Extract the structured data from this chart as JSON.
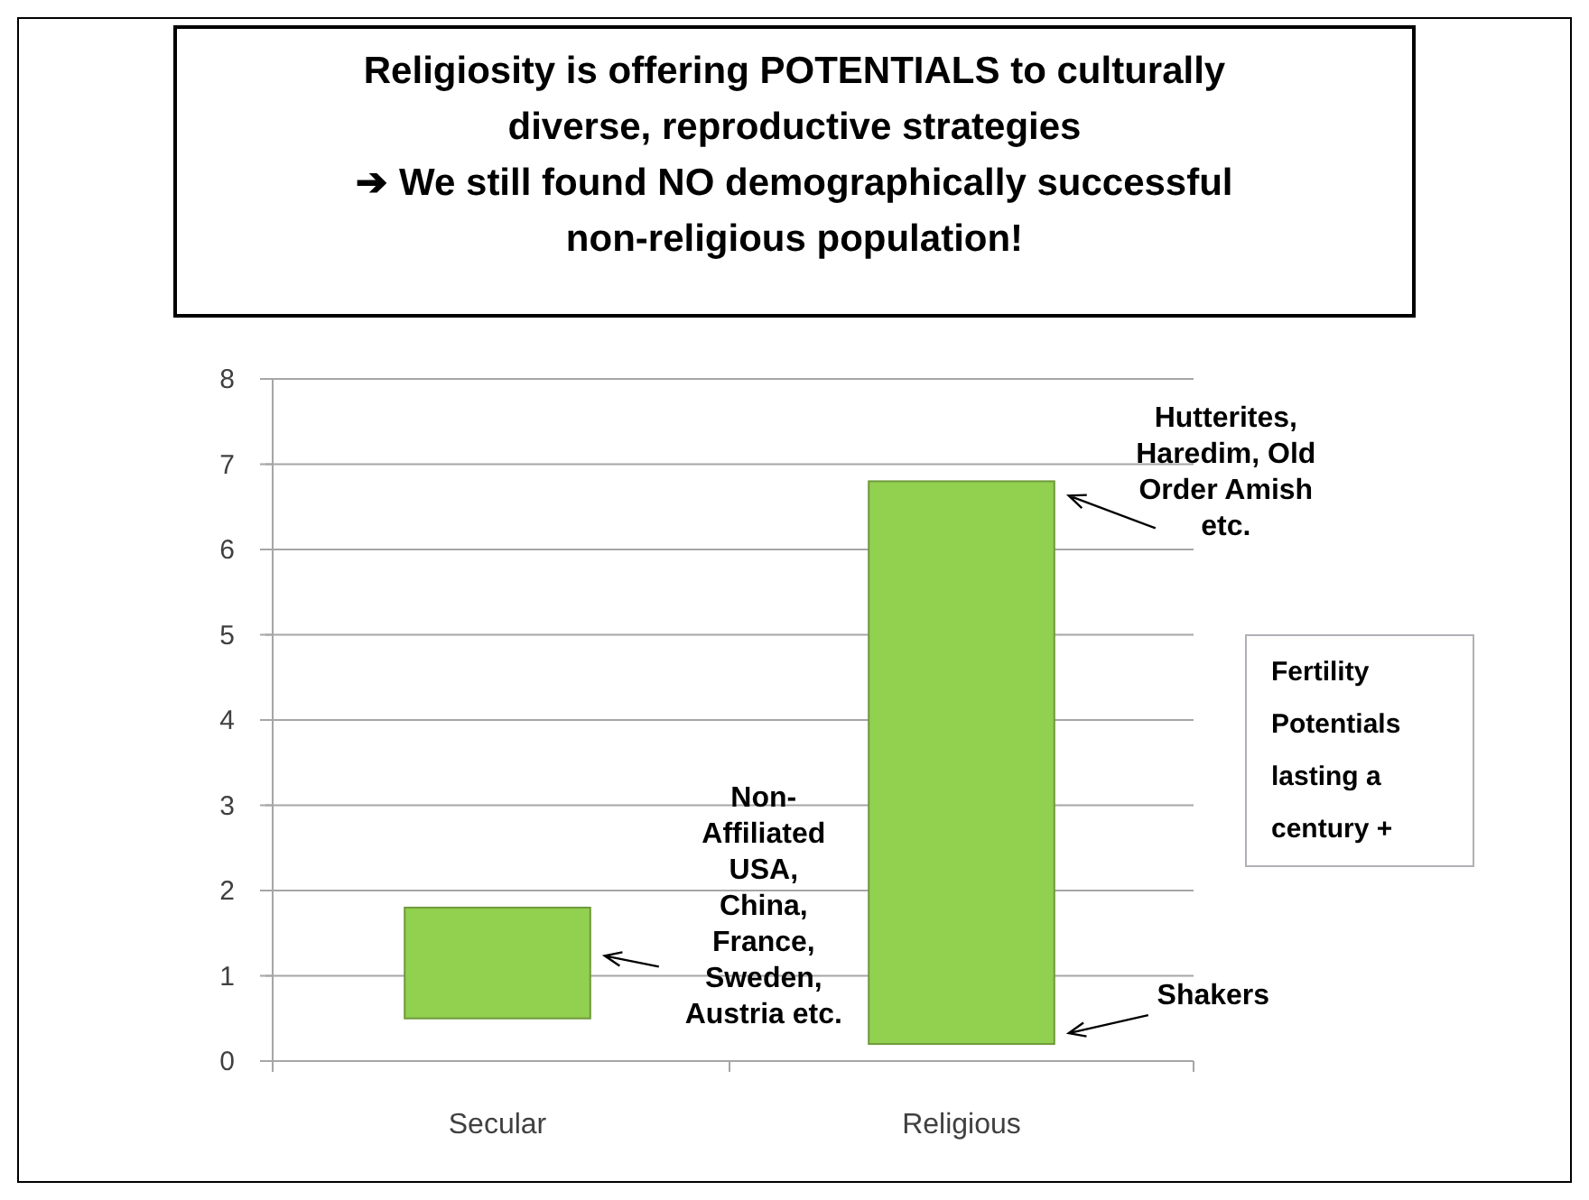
{
  "chart_data": {
    "type": "bar",
    "title": "Religiosity is offering POTENTIALS to culturally diverse, reproductive strategies",
    "subtitle": "➔ We still found NO demographically successful non-religious population!",
    "categories": [
      "Secular",
      "Religious"
    ],
    "values": [
      1.3,
      6.6
    ],
    "base": [
      0.5,
      0.2
    ],
    "color": "#92d050",
    "ylim": [
      0,
      8
    ],
    "yticks": [
      0,
      1,
      2,
      3,
      4,
      5,
      6,
      7,
      8
    ],
    "grid": "y",
    "annotations": [
      "Non-Affiliated USA, China, France, Sweden, Austria etc.",
      "Hutterites, Haredim, Old Order Amish etc.",
      "Shakers",
      "Fertility Potentials lasting a century +"
    ]
  }
}
